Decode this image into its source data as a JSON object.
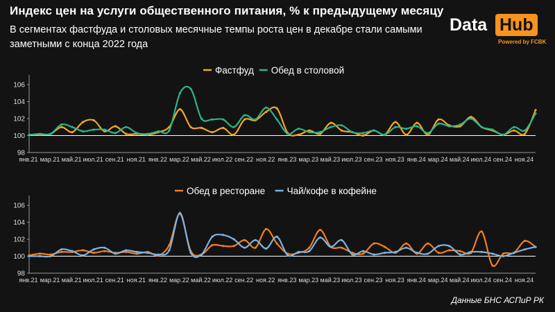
{
  "header": {
    "title": "Индекс цен на услуги общественного питания, % к предыдущему месяцу",
    "subtitle": "В сегментах фастфуда и столовых месячные темпы роста цен в декабре стали самыми заметными с конца 2022 года"
  },
  "logo": {
    "word1": "Data",
    "word2": "Hub",
    "powered": "Powered by FCBK",
    "accent_color": "#f7941d"
  },
  "source": "Данные БНС АСПиР РК",
  "chart_data": [
    {
      "type": "line",
      "title": "",
      "xlabel": "",
      "ylabel": "",
      "ylim": [
        98,
        106.5
      ],
      "yticks": [
        98,
        100,
        102,
        104,
        106
      ],
      "reference_line": 100,
      "grid": false,
      "legend_position": "top-center",
      "x_tick_labels": [
        "янв.21",
        "мар.21",
        "май.21",
        "июл.21",
        "сен.21",
        "ноя.21",
        "янв.22",
        "мар.22",
        "май.22",
        "июл.22",
        "сен.22",
        "ноя.22",
        "янв.23",
        "мар.23",
        "май.23",
        "июл.23",
        "сен.23",
        "ноя.23",
        "янв.24",
        "мар.24",
        "май.24",
        "июл.24",
        "сен.24",
        "ноя.24"
      ],
      "x": [
        "янв.21",
        "фев.21",
        "мар.21",
        "апр.21",
        "май.21",
        "июн.21",
        "июл.21",
        "авг.21",
        "сен.21",
        "окт.21",
        "ноя.21",
        "дек.21",
        "янв.22",
        "фев.22",
        "мар.22",
        "апр.22",
        "май.22",
        "июн.22",
        "июл.22",
        "авг.22",
        "сен.22",
        "окт.22",
        "ноя.22",
        "дек.22",
        "янв.23",
        "фев.23",
        "мар.23",
        "апр.23",
        "май.23",
        "июн.23",
        "июл.23",
        "авг.23",
        "сен.23",
        "окт.23",
        "ноя.23",
        "дек.23",
        "янв.24",
        "фев.24",
        "мар.24",
        "апр.24",
        "май.24",
        "июн.24",
        "июл.24",
        "авг.24",
        "сен.24",
        "окт.24",
        "ноя.24",
        "дек.24"
      ],
      "series": [
        {
          "name": "Фастфуд",
          "color": "#f5a623",
          "values": [
            100.1,
            100.1,
            100.2,
            101.0,
            100.4,
            101.6,
            101.8,
            100.5,
            101.1,
            100.2,
            100.2,
            100.1,
            100.4,
            101.0,
            103.1,
            101.0,
            100.9,
            100.4,
            100.9,
            100.1,
            101.9,
            101.8,
            102.8,
            103.2,
            100.3,
            100.1,
            100.6,
            100.2,
            101.5,
            100.6,
            100.4,
            100.0,
            100.6,
            100.1,
            101.6,
            100.1,
            101.5,
            100.1,
            101.9,
            101.2,
            101.1,
            102.2,
            101.0,
            100.6,
            100.1,
            100.6,
            100.2,
            103.0
          ]
        },
        {
          "name": "Обед в столовой",
          "color": "#2bb58b",
          "values": [
            100.1,
            100.2,
            100.2,
            101.3,
            101.0,
            100.5,
            100.7,
            100.7,
            100.3,
            101.0,
            100.3,
            100.2,
            100.5,
            100.6,
            105.0,
            105.5,
            102.0,
            101.9,
            101.9,
            101.0,
            102.4,
            101.9,
            103.3,
            101.9,
            100.2,
            100.8,
            100.4,
            100.4,
            101.0,
            101.2,
            100.4,
            100.3,
            100.6,
            100.1,
            101.0,
            100.8,
            101.1,
            100.3,
            101.4,
            101.1,
            101.3,
            102.0,
            101.0,
            100.7,
            100.1,
            101.0,
            100.6,
            102.6
          ]
        }
      ]
    },
    {
      "type": "line",
      "title": "",
      "xlabel": "",
      "ylabel": "",
      "ylim": [
        98,
        106.5
      ],
      "yticks": [
        98,
        100,
        102,
        104,
        106
      ],
      "reference_line": 100,
      "grid": false,
      "legend_position": "top-center",
      "x_tick_labels": [
        "янв.21",
        "мар.21",
        "май.21",
        "июл.21",
        "сен.21",
        "ноя.21",
        "янв.22",
        "мар.22",
        "май.22",
        "июл.22",
        "сен.22",
        "ноя.22",
        "янв.23",
        "мар.23",
        "май.23",
        "июл.23",
        "сен.23",
        "ноя.23",
        "янв.24",
        "мар.24",
        "май.24",
        "июл.24",
        "сен.24",
        "ноя.24"
      ],
      "x": [
        "янв.21",
        "фев.21",
        "мар.21",
        "апр.21",
        "май.21",
        "июн.21",
        "июл.21",
        "авг.21",
        "сен.21",
        "окт.21",
        "ноя.21",
        "дек.21",
        "янв.22",
        "фев.22",
        "мар.22",
        "апр.22",
        "май.22",
        "июн.22",
        "июл.22",
        "авг.22",
        "сен.22",
        "окт.22",
        "ноя.22",
        "дек.22",
        "янв.23",
        "фев.23",
        "мар.23",
        "апр.23",
        "май.23",
        "июн.23",
        "июл.23",
        "авг.23",
        "сен.23",
        "окт.23",
        "ноя.23",
        "дек.23",
        "янв.24",
        "фев.24",
        "мар.24",
        "апр.24",
        "май.24",
        "июн.24",
        "июл.24",
        "авг.24",
        "сен.24",
        "окт.24",
        "ноя.24",
        "дек.24"
      ],
      "series": [
        {
          "name": "Обед в ресторане",
          "color": "#f07f1e",
          "values": [
            100.1,
            100.3,
            100.2,
            100.5,
            100.5,
            100.7,
            100.4,
            100.6,
            100.4,
            100.5,
            100.3,
            100.5,
            100.1,
            101.3,
            105.0,
            100.6,
            100.2,
            101.3,
            101.2,
            101.2,
            101.9,
            101.0,
            103.2,
            101.5,
            100.3,
            100.4,
            101.0,
            103.1,
            101.1,
            101.0,
            100.4,
            100.3,
            101.5,
            101.1,
            100.4,
            101.5,
            100.3,
            101.5,
            100.4,
            100.7,
            100.6,
            100.4,
            102.9,
            98.9,
            100.3,
            100.4,
            101.8,
            101.1
          ]
        },
        {
          "name": "Чай/кофе в кофейне",
          "color": "#7fb1df",
          "values": [
            100.0,
            100.0,
            100.0,
            100.8,
            100.6,
            100.1,
            100.8,
            101.0,
            100.3,
            100.7,
            100.5,
            100.4,
            100.2,
            100.7,
            105.1,
            100.4,
            100.2,
            102.3,
            102.5,
            102.0,
            101.0,
            101.9,
            100.9,
            102.3,
            100.1,
            100.5,
            100.6,
            102.2,
            101.1,
            101.9,
            100.2,
            100.6,
            100.2,
            100.4,
            100.5,
            101.0,
            100.4,
            100.3,
            101.2,
            101.2,
            100.2,
            100.5,
            100.5,
            100.3,
            100.0,
            100.4,
            100.8,
            101.1
          ]
        }
      ]
    }
  ]
}
